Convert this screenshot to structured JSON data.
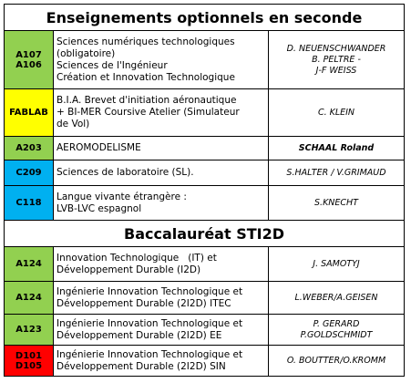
{
  "sections": [
    {
      "title": "Enseignements optionnels en seconde",
      "rows": [
        {
          "room": [
            "A107",
            "A106"
          ],
          "color": "#92d050",
          "subject": [
            "Sciences numériques technologiques",
            "(obligatoire)",
            "Sciences de l'Ingénieur",
            "Création et Innovation Technologique"
          ],
          "teacher": [
            "D. NEUENSCHWANDER",
            "B. PELTRE -",
            "J-F WEISS"
          ]
        },
        {
          "room": [
            "FABLAB"
          ],
          "color": "#ffff00",
          "subject": [
            "B.I.A. Brevet d'initiation aéronautique",
            "+ BI-MER Coursive Atelier (Simulateur",
            "de Vol)"
          ],
          "teacher": [
            "C. KLEIN"
          ]
        },
        {
          "room": [
            "A203"
          ],
          "color": "#92d050",
          "subject": [
            "AEROMODELISME"
          ],
          "teacher": [
            "SCHAAL Roland"
          ]
        },
        {
          "room": [
            "C209"
          ],
          "color": "#00b0f0",
          "subject": [
            "Sciences de laboratoire (SL)."
          ],
          "teacher": [
            "S.HALTER / V.GRIMAUD"
          ]
        },
        {
          "room": [
            "C118"
          ],
          "color": "#00b0f0",
          "subject": [
            "Langue vivante étrangère :",
            "LVB-LVC espagnol"
          ],
          "teacher": [
            "S.KNECHT"
          ]
        }
      ]
    },
    {
      "title": "Baccalauréat STI2D",
      "rows": [
        {
          "room": [
            "A124"
          ],
          "color": "#92d050",
          "subject": [
            "Innovation Technologique   (IT) et",
            "Développement Durable (I2D)"
          ],
          "teacher": [
            "J. SAMOTYJ"
          ]
        },
        {
          "room": [
            "A124"
          ],
          "color": "#92d050",
          "subject": [
            "Ingénierie Innovation Technologique et",
            "Développement Durable (2I2D) ITEC"
          ],
          "teacher": [
            "L.WEBER/A.GEISEN"
          ]
        },
        {
          "room": [
            "A123"
          ],
          "color": "#92d050",
          "subject": [
            "Ingénierie Innovation Technologique et",
            "Développement Durable (2I2D) EE"
          ],
          "teacher": [
            "P. GERARD",
            "P.GOLDSCHMIDT"
          ]
        },
        {
          "room": [
            "D101",
            "D105"
          ],
          "color": "#ff0000",
          "subject": [
            "Ingénierie Innovation Technologique et",
            "Développement Durable (2I2D) SIN"
          ],
          "teacher": [
            "O. BOUTTER/O.KROMM"
          ]
        }
      ]
    }
  ]
}
